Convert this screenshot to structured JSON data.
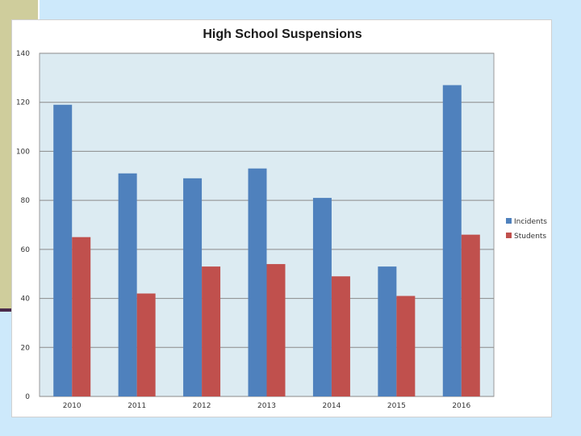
{
  "colors": {
    "incidents": "#4f81bd",
    "students": "#c0504d",
    "plot_bg": "#dcebf2",
    "grid": "#8a8a8a"
  },
  "chart_data": {
    "type": "bar",
    "title": "High School Suspensions",
    "xlabel": "",
    "ylabel": "",
    "categories": [
      "2010",
      "2011",
      "2012",
      "2013",
      "2014",
      "2015",
      "2016"
    ],
    "series": [
      {
        "name": "Incidents",
        "values": [
          119,
          91,
          89,
          93,
          81,
          53,
          127
        ]
      },
      {
        "name": "Students",
        "values": [
          65,
          42,
          53,
          54,
          49,
          41,
          66
        ]
      }
    ],
    "ylim": [
      0,
      140
    ],
    "yticks": [
      "0",
      "20",
      "40",
      "60",
      "80",
      "100",
      "120",
      "140"
    ],
    "grid": true,
    "legend_position": "right"
  }
}
